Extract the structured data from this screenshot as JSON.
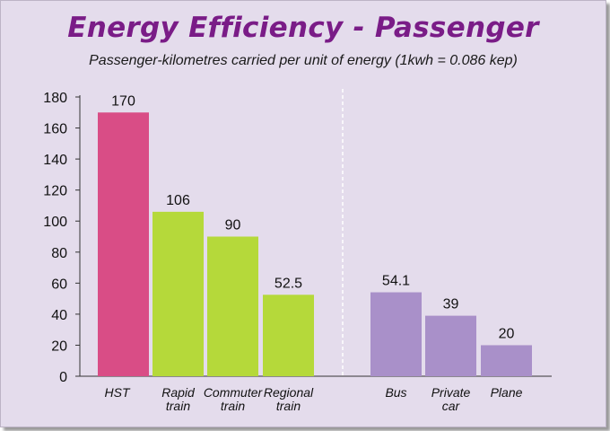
{
  "chart_data": {
    "type": "bar",
    "title": "Energy Efficiency - Passenger",
    "subtitle": "Passenger-kilometres carried per unit of energy (1kwh = 0.086 kep)",
    "xlabel": "",
    "ylabel": "",
    "ylim": [
      0,
      180
    ],
    "yticks": [
      0,
      20,
      40,
      60,
      80,
      100,
      120,
      140,
      160,
      180
    ],
    "grid": false,
    "categories": [
      {
        "lines": [
          "HST"
        ],
        "value": 170,
        "label": "170",
        "color": "#d94d86"
      },
      {
        "lines": [
          "Rapid",
          "train"
        ],
        "value": 106,
        "label": "106",
        "color": "#b5d93a"
      },
      {
        "lines": [
          "Commuter",
          "train"
        ],
        "value": 90,
        "label": "90",
        "color": "#b5d93a"
      },
      {
        "lines": [
          "Regional",
          "train"
        ],
        "value": 52.5,
        "label": "52.5",
        "color": "#b5d93a"
      },
      {
        "lines": [
          "Bus"
        ],
        "value": 54.1,
        "label": "54.1",
        "color": "#a990c9"
      },
      {
        "lines": [
          "Private",
          "car"
        ],
        "value": 39,
        "label": "39",
        "color": "#a990c9"
      },
      {
        "lines": [
          "Plane"
        ],
        "value": 20,
        "label": "20",
        "color": "#a990c9"
      }
    ],
    "separator_after_index": 3
  }
}
